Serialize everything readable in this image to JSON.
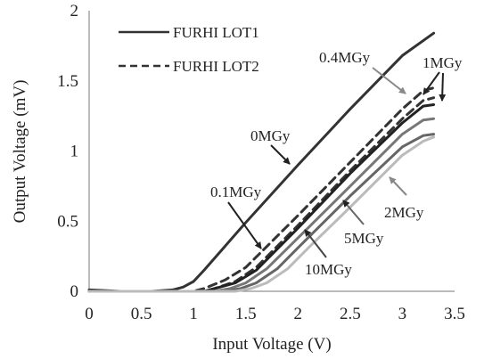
{
  "chart_data": {
    "type": "line",
    "xlabel": "Input Voltage (V)",
    "ylabel": "Output Voltage  (mV)",
    "xlim": [
      0,
      3.5
    ],
    "ylim": [
      0,
      2
    ],
    "xticks": [
      "0",
      "0.5",
      "1",
      "1.5",
      "2",
      "2.5",
      "3",
      "3.5"
    ],
    "yticks": [
      "0",
      "0.5",
      "1",
      "1.5",
      "2"
    ],
    "grid": false,
    "legend": {
      "position": "top-left",
      "entries": [
        {
          "label": "FURHI LOT1",
          "style": "solid"
        },
        {
          "label": "FURHI LOT2",
          "style": "dashed"
        }
      ]
    },
    "series": [
      {
        "style": "solid",
        "color": "#333333",
        "x": [
          0,
          0.3,
          0.6,
          0.8,
          0.9,
          1.0,
          1.1,
          1.3,
          1.5,
          2.0,
          2.5,
          3.0,
          3.3
        ],
        "y": [
          0.01,
          0.0,
          0.0,
          0.01,
          0.03,
          0.07,
          0.15,
          0.32,
          0.49,
          0.9,
          1.3,
          1.68,
          1.84
        ]
      },
      {
        "style": "dashed",
        "color": "#333333",
        "x": [
          0,
          0.8,
          1.0,
          1.1,
          1.3,
          1.5,
          2.0,
          2.5,
          3.0,
          3.2,
          3.3
        ],
        "y": [
          0.0,
          0.0,
          0.0,
          0.02,
          0.08,
          0.17,
          0.54,
          0.92,
          1.3,
          1.43,
          1.45
        ]
      },
      {
        "style": "dashed",
        "color": "#333333",
        "x": [
          0,
          0.9,
          1.1,
          1.2,
          1.4,
          1.6,
          2.0,
          2.5,
          3.0,
          3.2,
          3.3
        ],
        "y": [
          0.0,
          0.0,
          0.0,
          0.02,
          0.07,
          0.17,
          0.47,
          0.86,
          1.23,
          1.36,
          1.38
        ]
      },
      {
        "style": "solid",
        "color": "#222222",
        "x": [
          0,
          0.9,
          1.1,
          1.2,
          1.4,
          1.6,
          2.0,
          2.5,
          3.0,
          3.2,
          3.3
        ],
        "y": [
          0.0,
          0.0,
          0.0,
          0.02,
          0.06,
          0.15,
          0.45,
          0.84,
          1.2,
          1.32,
          1.33
        ]
      },
      {
        "style": "solid",
        "color": "#777777",
        "x": [
          0,
          1.0,
          1.2,
          1.35,
          1.5,
          1.7,
          2.0,
          2.5,
          3.0,
          3.2,
          3.3
        ],
        "y": [
          0.0,
          0.0,
          0.0,
          0.02,
          0.06,
          0.16,
          0.38,
          0.75,
          1.12,
          1.22,
          1.23
        ]
      },
      {
        "style": "solid",
        "color": "#666666",
        "x": [
          0,
          1.1,
          1.3,
          1.45,
          1.6,
          1.8,
          2.0,
          2.5,
          3.0,
          3.2,
          3.3
        ],
        "y": [
          0.0,
          0.0,
          0.0,
          0.02,
          0.06,
          0.16,
          0.31,
          0.68,
          1.03,
          1.11,
          1.12
        ]
      },
      {
        "style": "solid",
        "color": "#bbbbbb",
        "x": [
          0,
          1.2,
          1.4,
          1.55,
          1.7,
          1.9,
          2.1,
          2.5,
          3.0,
          3.2,
          3.3
        ],
        "y": [
          0.0,
          0.0,
          0.0,
          0.02,
          0.06,
          0.16,
          0.31,
          0.6,
          0.97,
          1.07,
          1.1
        ]
      }
    ],
    "annotations": [
      {
        "text": "0MGy",
        "color": "#222222"
      },
      {
        "text": "0.1MGy",
        "color": "#222222"
      },
      {
        "text": "0.4MGy",
        "color": "#999999"
      },
      {
        "text": "1MGy",
        "color": "#222222"
      },
      {
        "text": "2MGy",
        "color": "#222222"
      },
      {
        "text": "5MGy",
        "color": "#222222"
      },
      {
        "text": "10MGy",
        "color": "#222222"
      }
    ]
  }
}
